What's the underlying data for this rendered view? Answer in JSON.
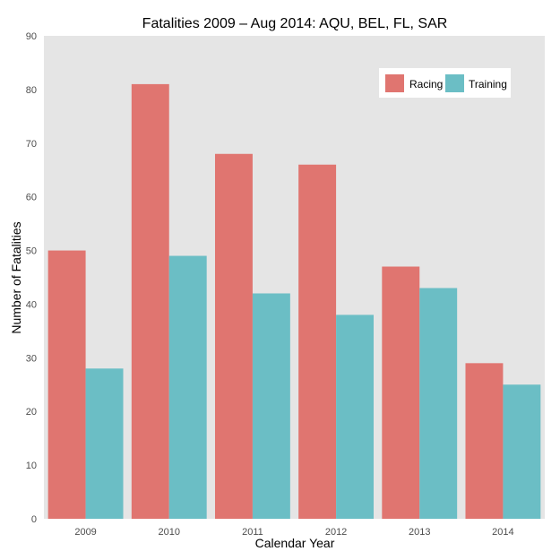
{
  "chart_data": {
    "type": "bar",
    "title": "Fatalities 2009 – Aug 2014: AQU, BEL, FL, SAR",
    "xlabel": "Calendar Year",
    "ylabel": "Number of Fatalities",
    "categories": [
      "2009",
      "2010",
      "2011",
      "2012",
      "2013",
      "2014"
    ],
    "series": [
      {
        "name": "Racing",
        "values": [
          50,
          81,
          68,
          66,
          47,
          29
        ],
        "color": "#e07570"
      },
      {
        "name": "Training",
        "values": [
          28,
          49,
          42,
          38,
          43,
          25
        ],
        "color": "#6bbec5"
      }
    ],
    "ylim": [
      0,
      90
    ],
    "yticks": [
      0,
      10,
      20,
      30,
      40,
      50,
      60,
      70,
      80,
      90
    ],
    "grid": false,
    "panel_background": "#e5e5e5",
    "legend_position": "top-right"
  }
}
